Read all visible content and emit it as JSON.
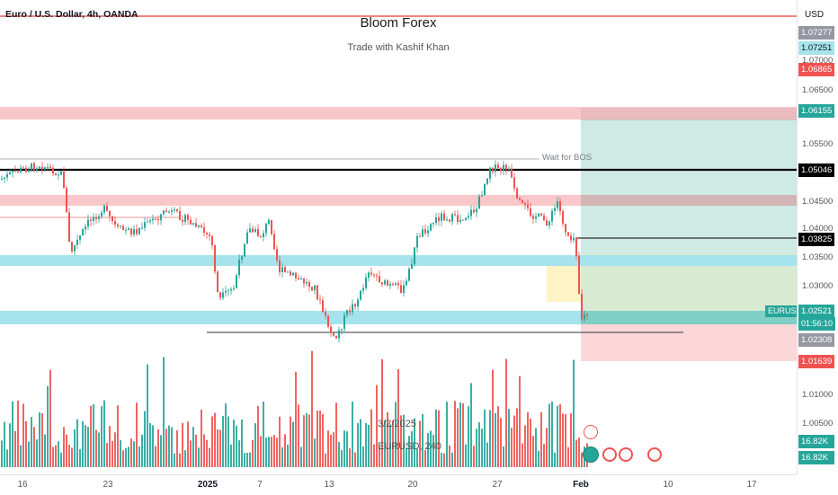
{
  "header": {
    "symbol": "Euro / U.S. Dollar, 4h, OANDA",
    "brand": "Bloom Forex",
    "tagline": "Trade with Kashif Khan"
  },
  "annotations": {
    "wait_for_bos": "Wait for BOS",
    "watermark_date": "3/2/2025",
    "watermark_symbol": "EURUSD, 240"
  },
  "price_axis": {
    "currency": "USD",
    "ticks": [
      "1.07000",
      "1.06500",
      "1.05500",
      "1.04500",
      "1.04000",
      "1.03500",
      "1.03000",
      "1.01000",
      "1.00500"
    ],
    "badges": {
      "p1": "1.07277",
      "p2": "1.07251",
      "p3": "1.06865",
      "p4": "1.06155",
      "p5": "1.05046",
      "p6": "1.03825",
      "p7": "1.02521",
      "p7_timer": "01:56:10",
      "p8": "1.02308",
      "p9": "1.01639",
      "vol1": "16.82K",
      "vol2": "16.82K"
    }
  },
  "price_tag": "EURUSD",
  "time_axis": {
    "labels": [
      "16",
      "23",
      "2025",
      "7",
      "13",
      "20",
      "27",
      "Feb",
      "10",
      "17"
    ]
  },
  "chart_data": {
    "type": "candlestick",
    "symbol": "EURUSD",
    "timeframe": "4h",
    "last_price": 1.02521,
    "levels": [
      1.07277,
      1.07251,
      1.06865,
      1.06155,
      1.05046,
      1.03825,
      1.02521,
      1.02308,
      1.01639
    ],
    "colors": {
      "up": "#26a69a",
      "down": "#ef5350",
      "supply": "#f7b9bc",
      "demand": "#a6e3ec",
      "target": "#cfe9e4",
      "stop": "#fbd7d9"
    }
  }
}
